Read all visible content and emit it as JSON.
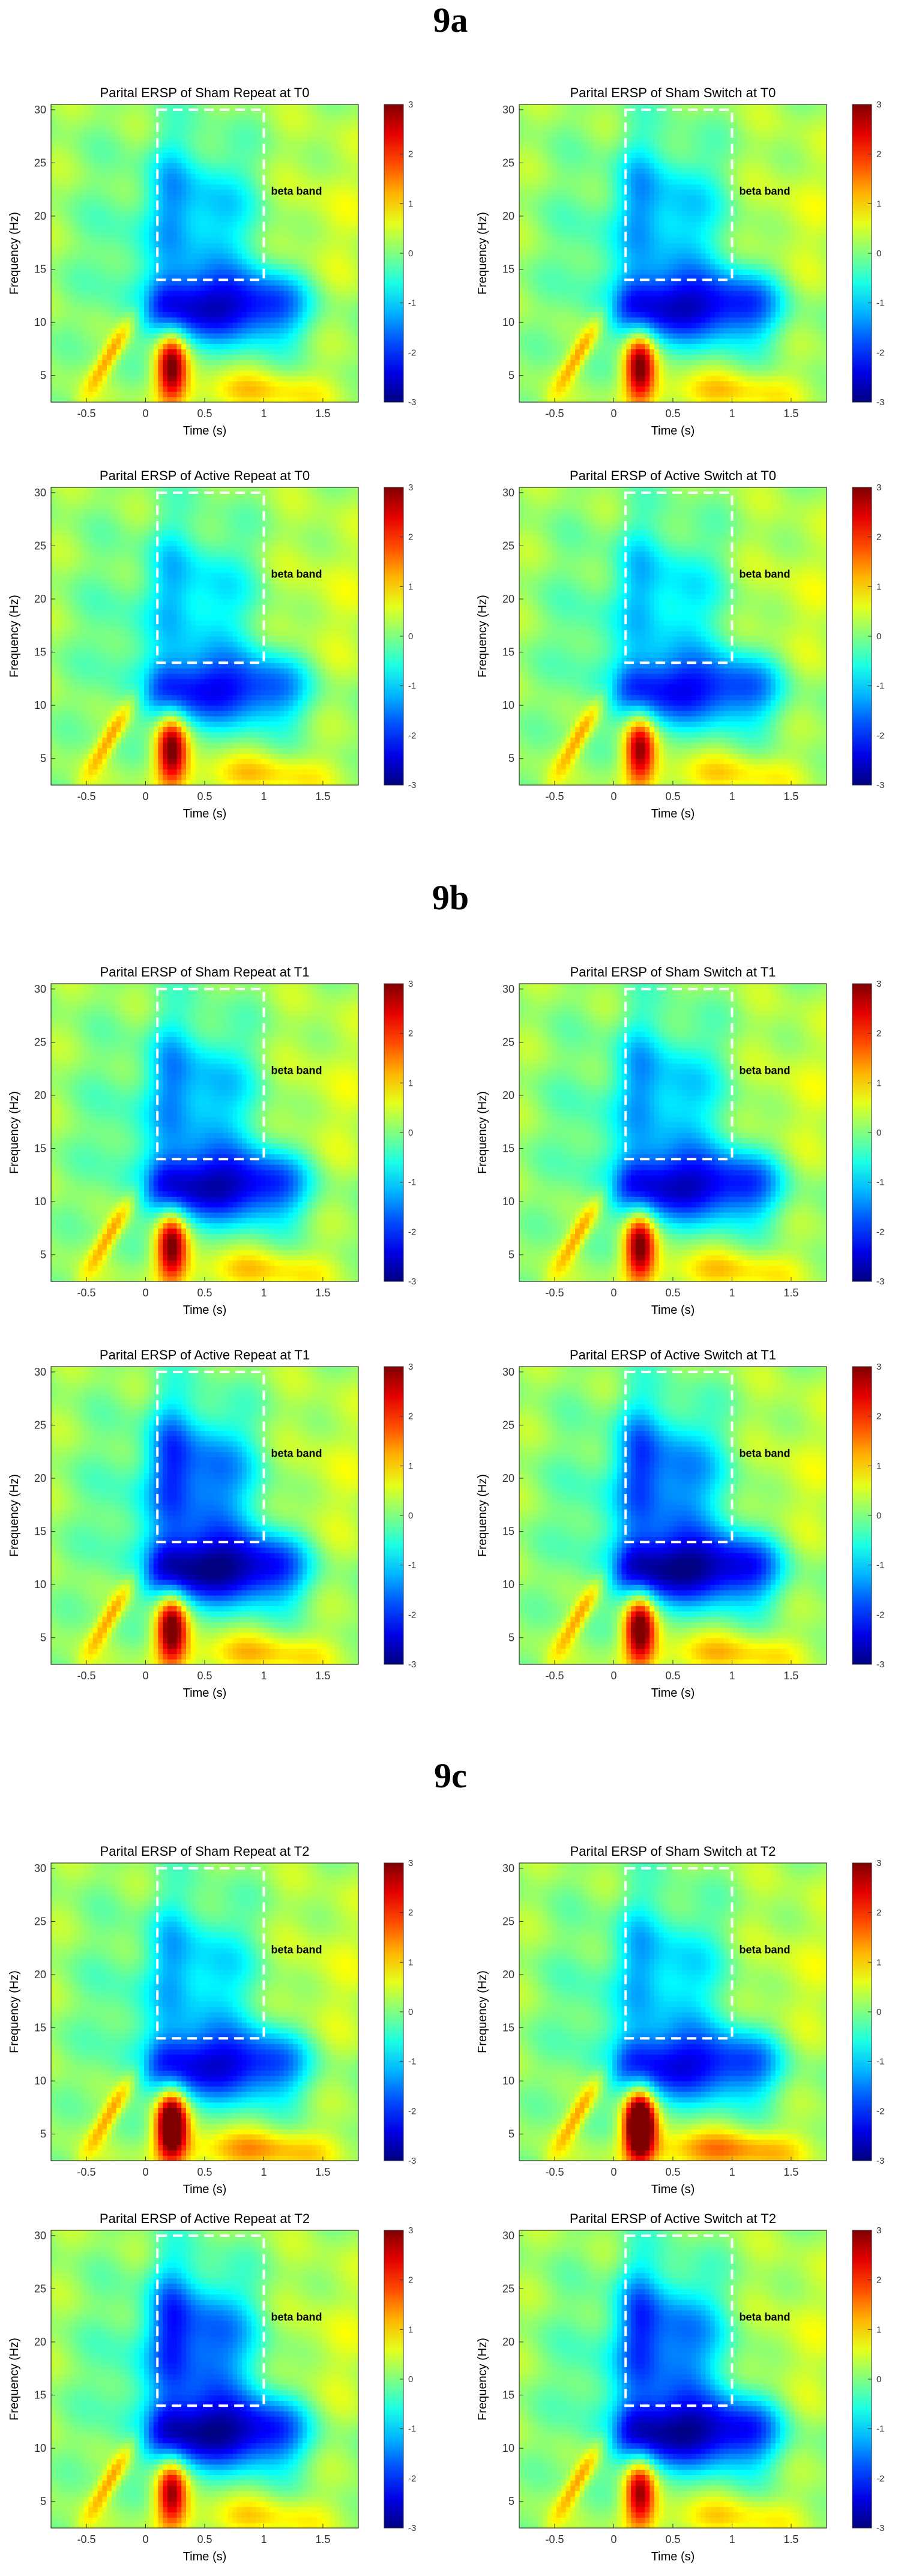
{
  "sections": [
    {
      "label": "9a"
    },
    {
      "label": "9b"
    },
    {
      "label": "9c"
    }
  ],
  "chart_data": [
    {
      "type": "heatmap",
      "title": "Parital ERSP of Sham Repeat at T0",
      "xlabel": "Time (s)",
      "ylabel": "Frequency (Hz)",
      "xlim": [
        -0.8,
        1.8
      ],
      "ylim": [
        2.5,
        30.5
      ],
      "x_ticks": [
        -0.5,
        0,
        0.5,
        1,
        1.5
      ],
      "y_ticks": [
        5,
        10,
        15,
        20,
        25,
        30
      ],
      "colorbar_range": [
        -3,
        3
      ],
      "colorbar_ticks": [
        -3,
        -2,
        -1,
        0,
        1,
        2,
        3
      ],
      "annotation": "beta band",
      "roi": {
        "x0": 0.1,
        "x1": 1.0,
        "y0": 14,
        "y1": 30
      },
      "features": {
        "low_freq_power": 1.0,
        "desync_depth": -2.6,
        "desync_extent": 1.3,
        "beta_depth": -1.3
      }
    },
    {
      "type": "heatmap",
      "title": "Parital ERSP of Sham Switch at T0",
      "xlabel": "Time (s)",
      "ylabel": "Frequency (Hz)",
      "xlim": [
        -0.8,
        1.8
      ],
      "ylim": [
        2.5,
        30.5
      ],
      "x_ticks": [
        -0.5,
        0,
        0.5,
        1,
        1.5
      ],
      "y_ticks": [
        5,
        10,
        15,
        20,
        25,
        30
      ],
      "colorbar_range": [
        -3,
        3
      ],
      "colorbar_ticks": [
        -3,
        -2,
        -1,
        0,
        1,
        2,
        3
      ],
      "annotation": "beta band",
      "roi": {
        "x0": 0.1,
        "x1": 1.0,
        "y0": 14,
        "y1": 30
      },
      "features": {
        "low_freq_power": 1.0,
        "desync_depth": -2.6,
        "desync_extent": 1.35,
        "beta_depth": -1.3
      }
    },
    {
      "type": "heatmap",
      "title": "Parital ERSP of Active Repeat at T0",
      "xlabel": "Time (s)",
      "ylabel": "Frequency (Hz)",
      "xlim": [
        -0.8,
        1.8
      ],
      "ylim": [
        2.5,
        30.5
      ],
      "x_ticks": [
        -0.5,
        0,
        0.5,
        1,
        1.5
      ],
      "y_ticks": [
        5,
        10,
        15,
        20,
        25,
        30
      ],
      "colorbar_range": [
        -3,
        3
      ],
      "colorbar_ticks": [
        -3,
        -2,
        -1,
        0,
        1,
        2,
        3
      ],
      "annotation": "beta band",
      "roi": {
        "x0": 0.1,
        "x1": 1.0,
        "y0": 14,
        "y1": 30
      },
      "features": {
        "low_freq_power": 1.0,
        "desync_depth": -2.3,
        "desync_extent": 1.3,
        "beta_depth": -1.1
      }
    },
    {
      "type": "heatmap",
      "title": "Parital ERSP of Active Switch at T0",
      "xlabel": "Time (s)",
      "ylabel": "Frequency (Hz)",
      "xlim": [
        -0.8,
        1.8
      ],
      "ylim": [
        2.5,
        30.5
      ],
      "x_ticks": [
        -0.5,
        0,
        0.5,
        1,
        1.5
      ],
      "y_ticks": [
        5,
        10,
        15,
        20,
        25,
        30
      ],
      "colorbar_range": [
        -3,
        3
      ],
      "colorbar_ticks": [
        -3,
        -2,
        -1,
        0,
        1,
        2,
        3
      ],
      "annotation": "beta band",
      "roi": {
        "x0": 0.1,
        "x1": 1.0,
        "y0": 14,
        "y1": 30
      },
      "features": {
        "low_freq_power": 0.9,
        "desync_depth": -2.3,
        "desync_extent": 1.35,
        "beta_depth": -1.1
      }
    },
    {
      "type": "heatmap",
      "title": "Parital ERSP of Sham Repeat at T1",
      "xlabel": "Time (s)",
      "ylabel": "Frequency (Hz)",
      "xlim": [
        -0.8,
        1.8
      ],
      "ylim": [
        2.5,
        30.5
      ],
      "x_ticks": [
        -0.5,
        0,
        0.5,
        1,
        1.5
      ],
      "y_ticks": [
        5,
        10,
        15,
        20,
        25,
        30
      ],
      "colorbar_range": [
        -3,
        3
      ],
      "colorbar_ticks": [
        -3,
        -2,
        -1,
        0,
        1,
        2,
        3
      ],
      "annotation": "beta band",
      "roi": {
        "x0": 0.1,
        "x1": 1.0,
        "y0": 14,
        "y1": 30
      },
      "features": {
        "low_freq_power": 1.0,
        "desync_depth": -2.7,
        "desync_extent": 1.3,
        "beta_depth": -1.4
      }
    },
    {
      "type": "heatmap",
      "title": "Parital ERSP of Sham Switch at T1",
      "xlabel": "Time (s)",
      "ylabel": "Frequency (Hz)",
      "xlim": [
        -0.8,
        1.8
      ],
      "ylim": [
        2.5,
        30.5
      ],
      "x_ticks": [
        -0.5,
        0,
        0.5,
        1,
        1.5
      ],
      "y_ticks": [
        5,
        10,
        15,
        20,
        25,
        30
      ],
      "colorbar_range": [
        -3,
        3
      ],
      "colorbar_ticks": [
        -3,
        -2,
        -1,
        0,
        1,
        2,
        3
      ],
      "annotation": "beta band",
      "roi": {
        "x0": 0.1,
        "x1": 1.0,
        "y0": 14,
        "y1": 30
      },
      "features": {
        "low_freq_power": 1.0,
        "desync_depth": -2.6,
        "desync_extent": 1.35,
        "beta_depth": -1.3
      }
    },
    {
      "type": "heatmap",
      "title": "Parital ERSP of Active Repeat at T1",
      "xlabel": "Time (s)",
      "ylabel": "Frequency (Hz)",
      "xlim": [
        -0.8,
        1.8
      ],
      "ylim": [
        2.5,
        30.5
      ],
      "x_ticks": [
        -0.5,
        0,
        0.5,
        1,
        1.5
      ],
      "y_ticks": [
        5,
        10,
        15,
        20,
        25,
        30
      ],
      "colorbar_range": [
        -3,
        3
      ],
      "colorbar_ticks": [
        -3,
        -2,
        -1,
        0,
        1,
        2,
        3
      ],
      "annotation": "beta band",
      "roi": {
        "x0": 0.1,
        "x1": 1.0,
        "y0": 14,
        "y1": 30
      },
      "features": {
        "low_freq_power": 1.1,
        "desync_depth": -2.9,
        "desync_extent": 1.3,
        "beta_depth": -1.9
      }
    },
    {
      "type": "heatmap",
      "title": "Parital ERSP of Active Switch at T1",
      "xlabel": "Time (s)",
      "ylabel": "Frequency (Hz)",
      "xlim": [
        -0.8,
        1.8
      ],
      "ylim": [
        2.5,
        30.5
      ],
      "x_ticks": [
        -0.5,
        0,
        0.5,
        1,
        1.5
      ],
      "y_ticks": [
        5,
        10,
        15,
        20,
        25,
        30
      ],
      "colorbar_range": [
        -3,
        3
      ],
      "colorbar_ticks": [
        -3,
        -2,
        -1,
        0,
        1,
        2,
        3
      ],
      "annotation": "beta band",
      "roi": {
        "x0": 0.1,
        "x1": 1.0,
        "y0": 14,
        "y1": 30
      },
      "features": {
        "low_freq_power": 1.1,
        "desync_depth": -2.9,
        "desync_extent": 1.35,
        "beta_depth": -1.8
      }
    },
    {
      "type": "heatmap",
      "title": "Parital ERSP of Sham Repeat at T2",
      "xlabel": "Time (s)",
      "ylabel": "Frequency (Hz)",
      "xlim": [
        -0.8,
        1.8
      ],
      "ylim": [
        2.5,
        30.5
      ],
      "x_ticks": [
        -0.5,
        0,
        0.5,
        1,
        1.5
      ],
      "y_ticks": [
        5,
        10,
        15,
        20,
        25,
        30
      ],
      "colorbar_range": [
        -3,
        3
      ],
      "colorbar_ticks": [
        -3,
        -2,
        -1,
        0,
        1,
        2,
        3
      ],
      "annotation": "beta band",
      "roi": {
        "x0": 0.1,
        "x1": 1.0,
        "y0": 14,
        "y1": 30
      },
      "features": {
        "low_freq_power": 1.4,
        "desync_depth": -2.5,
        "desync_extent": 1.3,
        "beta_depth": -1.2
      }
    },
    {
      "type": "heatmap",
      "title": "Parital ERSP of Sham Switch at T2",
      "xlabel": "Time (s)",
      "ylabel": "Frequency (Hz)",
      "xlim": [
        -0.8,
        1.8
      ],
      "ylim": [
        2.5,
        30.5
      ],
      "x_ticks": [
        -0.5,
        0,
        0.5,
        1,
        1.5
      ],
      "y_ticks": [
        5,
        10,
        15,
        20,
        25,
        30
      ],
      "colorbar_range": [
        -3,
        3
      ],
      "colorbar_ticks": [
        -3,
        -2,
        -1,
        0,
        1,
        2,
        3
      ],
      "annotation": "beta band",
      "roi": {
        "x0": 0.1,
        "x1": 1.0,
        "y0": 14,
        "y1": 30
      },
      "features": {
        "low_freq_power": 1.6,
        "desync_depth": -2.4,
        "desync_extent": 1.35,
        "beta_depth": -1.2
      }
    },
    {
      "type": "heatmap",
      "title": "Parital ERSP of Active Repeat at T2",
      "xlabel": "Time (s)",
      "ylabel": "Frequency (Hz)",
      "xlim": [
        -0.8,
        1.8
      ],
      "ylim": [
        2.5,
        30.5
      ],
      "x_ticks": [
        -0.5,
        0,
        0.5,
        1,
        1.5
      ],
      "y_ticks": [
        5,
        10,
        15,
        20,
        25,
        30
      ],
      "colorbar_range": [
        -3,
        3
      ],
      "colorbar_ticks": [
        -3,
        -2,
        -1,
        0,
        1,
        2,
        3
      ],
      "annotation": "beta band",
      "roi": {
        "x0": 0.1,
        "x1": 1.0,
        "y0": 14,
        "y1": 30
      },
      "features": {
        "low_freq_power": 0.9,
        "desync_depth": -2.8,
        "desync_extent": 1.3,
        "beta_depth": -2.0
      }
    },
    {
      "type": "heatmap",
      "title": "Parital ERSP of Active Switch at T2",
      "xlabel": "Time (s)",
      "ylabel": "Frequency (Hz)",
      "xlim": [
        -0.8,
        1.8
      ],
      "ylim": [
        2.5,
        30.5
      ],
      "x_ticks": [
        -0.5,
        0,
        0.5,
        1,
        1.5
      ],
      "y_ticks": [
        5,
        10,
        15,
        20,
        25,
        30
      ],
      "colorbar_range": [
        -3,
        3
      ],
      "colorbar_ticks": [
        -3,
        -2,
        -1,
        0,
        1,
        2,
        3
      ],
      "annotation": "beta band",
      "roi": {
        "x0": 0.1,
        "x1": 1.0,
        "y0": 14,
        "y1": 30
      },
      "features": {
        "low_freq_power": 0.9,
        "desync_depth": -2.8,
        "desync_extent": 1.35,
        "beta_depth": -1.9
      }
    }
  ]
}
